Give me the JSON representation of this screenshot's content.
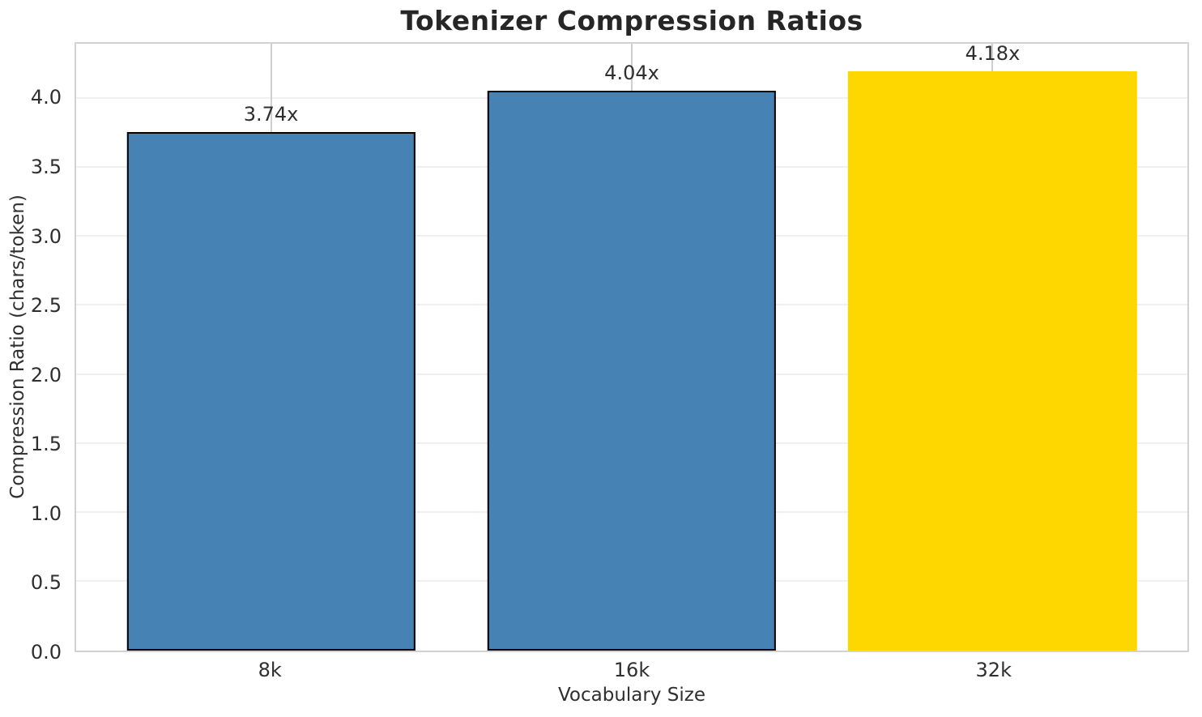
{
  "chart_data": {
    "type": "bar",
    "title": "Tokenizer Compression Ratios",
    "categories": [
      "8k",
      "16k",
      "32k"
    ],
    "values": [
      3.74,
      4.04,
      4.18
    ],
    "bar_labels": [
      "3.74x",
      "4.04x",
      "4.18x"
    ],
    "xlabel": "Vocabulary Size",
    "ylabel": "Compression Ratio (chars/token)",
    "ylim": [
      0,
      4.4
    ],
    "yticks": [
      0.0,
      0.5,
      1.0,
      1.5,
      2.0,
      2.5,
      3.0,
      3.5,
      4.0
    ],
    "ytick_labels": [
      "0.0",
      "0.5",
      "1.0",
      "1.5",
      "2.0",
      "2.5",
      "3.0",
      "3.5",
      "4.0"
    ],
    "grid": "both",
    "legend_position": "none",
    "highlight_index": 2,
    "colors": {
      "bar_default": "#4682b4",
      "bar_highlight": "#ffd700",
      "bar_edge": "#000000",
      "grid_horizontal": "#f0f0f0",
      "grid_vertical": "#cfcfcf",
      "spine": "#d2d2d2",
      "text": "#2f2f2f",
      "title_text": "#262626"
    }
  }
}
